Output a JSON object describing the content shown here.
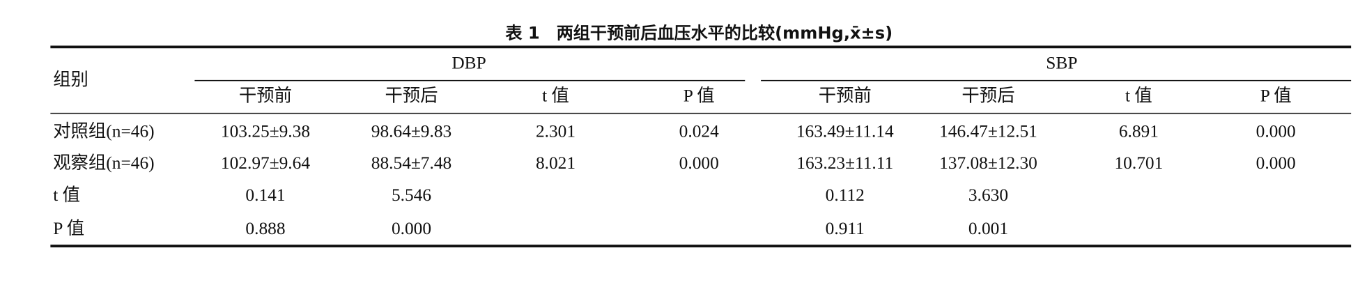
{
  "table": {
    "title": "表 1　两组干预前后血压水平的比较(mmHg,x̄±s)",
    "group_header": "组别",
    "groups": [
      {
        "name": "DBP",
        "columns": [
          "干预前",
          "干预后",
          "t 值",
          "P 值"
        ]
      },
      {
        "name": "SBP",
        "columns": [
          "干预前",
          "干预后",
          "t 值",
          "P 值"
        ]
      }
    ],
    "rows": [
      {
        "label": "对照组(n=46)",
        "DBP": [
          "103.25±9.38",
          "98.64±9.83",
          "2.301",
          "0.024"
        ],
        "SBP": [
          "163.49±11.14",
          "146.47±12.51",
          "6.891",
          "0.000"
        ]
      },
      {
        "label": "观察组(n=46)",
        "DBP": [
          "102.97±9.64",
          "88.54±7.48",
          "8.021",
          "0.000"
        ],
        "SBP": [
          "163.23±11.11",
          "137.08±12.30",
          "10.701",
          "0.000"
        ]
      },
      {
        "label": "t 值",
        "DBP": [
          "0.141",
          "5.546"
        ],
        "SBP": [
          "0.112",
          "3.630"
        ]
      },
      {
        "label": "P 值",
        "DBP": [
          "0.888",
          "0.000"
        ],
        "SBP": [
          "0.911",
          "0.001"
        ]
      }
    ]
  }
}
